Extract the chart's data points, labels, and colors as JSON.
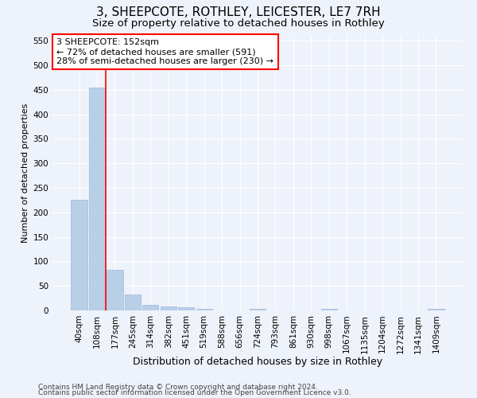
{
  "title_line1": "3, SHEEPCOTE, ROTHLEY, LEICESTER, LE7 7RH",
  "title_line2": "Size of property relative to detached houses in Rothley",
  "xlabel": "Distribution of detached houses by size in Rothley",
  "ylabel": "Number of detached properties",
  "footer_line1": "Contains HM Land Registry data © Crown copyright and database right 2024.",
  "footer_line2": "Contains public sector information licensed under the Open Government Licence v3.0.",
  "categories": [
    "40sqm",
    "108sqm",
    "177sqm",
    "245sqm",
    "314sqm",
    "382sqm",
    "451sqm",
    "519sqm",
    "588sqm",
    "656sqm",
    "724sqm",
    "793sqm",
    "861sqm",
    "930sqm",
    "998sqm",
    "1067sqm",
    "1135sqm",
    "1204sqm",
    "1272sqm",
    "1341sqm",
    "1409sqm"
  ],
  "values": [
    225,
    455,
    82,
    32,
    12,
    8,
    6,
    4,
    0,
    0,
    4,
    0,
    0,
    0,
    3,
    0,
    0,
    0,
    0,
    0,
    4
  ],
  "bar_color": "#b8cfe8",
  "bar_edge_color": "#9ab8d8",
  "red_line_x": 1.5,
  "annotation_text_line1": "3 SHEEPCOTE: 152sqm",
  "annotation_text_line2": "← 72% of detached houses are smaller (591)",
  "annotation_text_line3": "28% of semi-detached houses are larger (230) →",
  "annotation_box_color": "white",
  "annotation_box_edge_color": "red",
  "red_line_color": "red",
  "ylim": [
    0,
    560
  ],
  "yticks": [
    0,
    50,
    100,
    150,
    200,
    250,
    300,
    350,
    400,
    450,
    500,
    550
  ],
  "background_color": "#eef2fa",
  "grid_color": "white",
  "title1_fontsize": 11,
  "title2_fontsize": 9.5,
  "xlabel_fontsize": 9,
  "ylabel_fontsize": 8,
  "tick_fontsize": 7.5,
  "annotation_fontsize": 8,
  "footer_fontsize": 6.5
}
